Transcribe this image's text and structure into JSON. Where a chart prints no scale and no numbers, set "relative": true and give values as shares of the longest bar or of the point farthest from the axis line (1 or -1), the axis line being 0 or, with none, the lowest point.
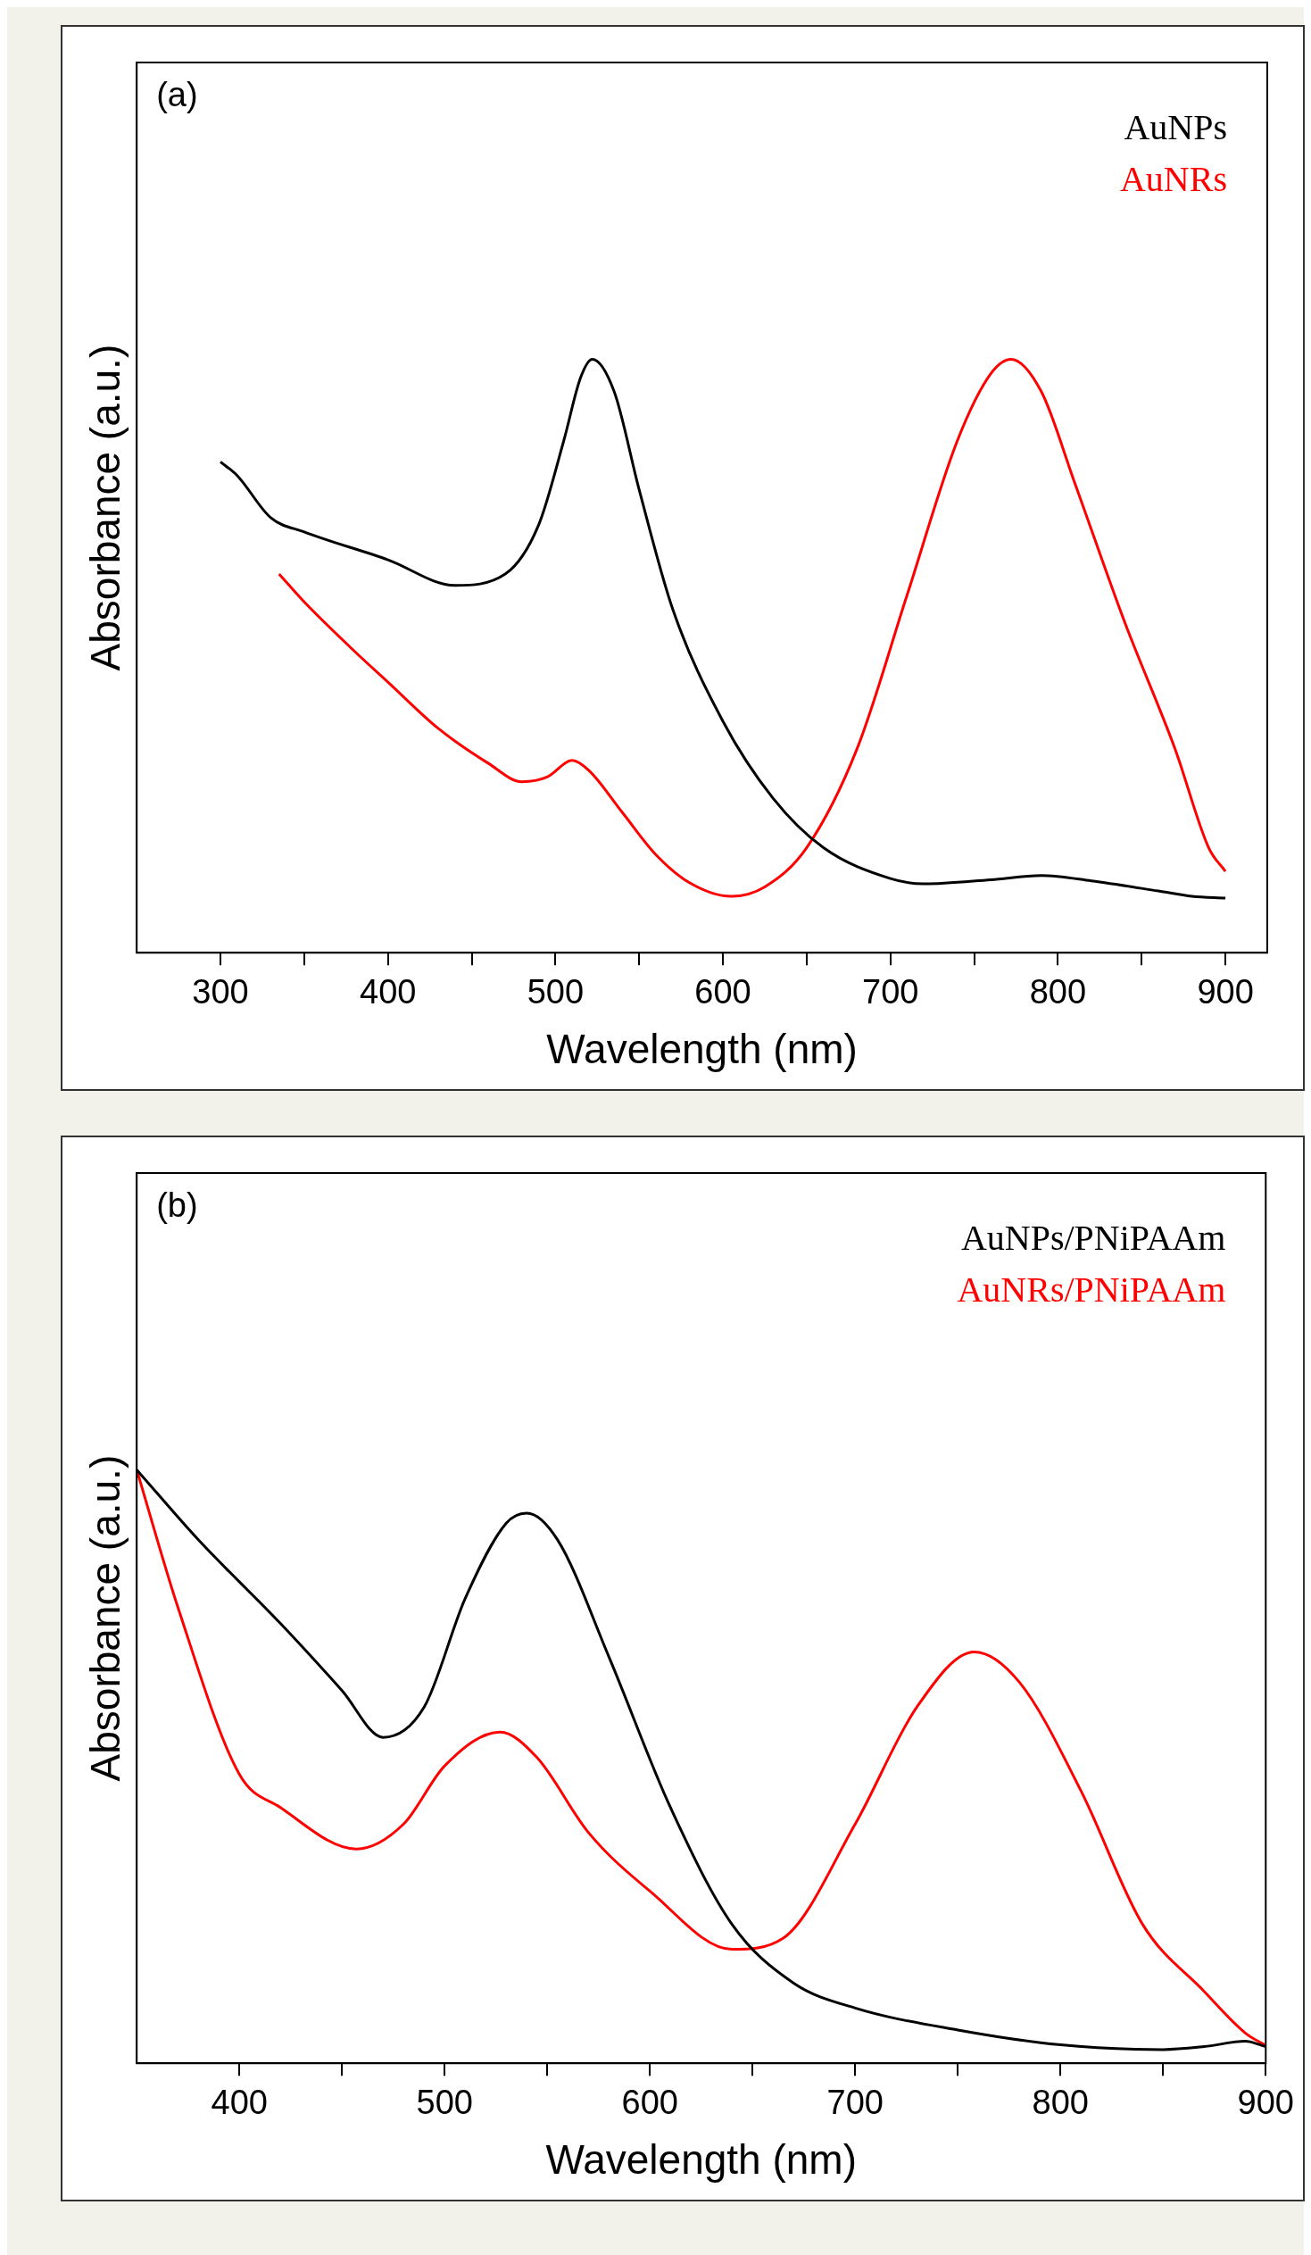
{
  "chart_data": [
    {
      "type": "line",
      "title": "(a)",
      "xlabel": "Wavelength (nm)",
      "ylabel": "Absorbance (a.u.)",
      "relative": true,
      "xlim": [
        250,
        925
      ],
      "xticks": [
        300,
        {
          "value": 350,
          "label": null
        },
        400,
        {
          "value": 450,
          "label": null
        },
        500,
        {
          "value": 550,
          "label": null
        },
        600,
        {
          "value": 650,
          "label": null
        },
        700,
        {
          "value": 750,
          "label": null
        },
        800,
        {
          "value": 850,
          "label": null
        },
        900
      ],
      "legend": "top right",
      "grid": false,
      "marker": "none",
      "line_style": "solid",
      "series": [
        {
          "name": "AuNPs",
          "color": "#000000",
          "x": [
            300,
            310,
            330,
            350,
            400,
            440,
            470,
            490,
            505,
            515,
            522,
            535,
            550,
            570,
            600,
            630,
            660,
            700,
            720,
            760,
            790,
            820,
            860,
            880,
            900
          ],
          "values": [
            0.827,
            0.804,
            0.733,
            0.709,
            0.662,
            0.619,
            0.638,
            0.721,
            0.863,
            0.969,
            1.0,
            0.946,
            0.78,
            0.579,
            0.39,
            0.26,
            0.177,
            0.125,
            0.116,
            0.123,
            0.13,
            0.121,
            0.104,
            0.095,
            0.092
          ]
        },
        {
          "name": "AuNRs",
          "color": "#ff0000",
          "x": [
            335,
            350,
            380,
            400,
            430,
            460,
            480,
            495,
            510,
            520,
            540,
            560,
            580,
            605,
            625,
            650,
            680,
            710,
            740,
            760,
            772,
            790,
            810,
            840,
            870,
            890,
            900
          ],
          "values": [
            0.638,
            0.591,
            0.508,
            0.456,
            0.378,
            0.319,
            0.288,
            0.296,
            0.324,
            0.307,
            0.236,
            0.165,
            0.118,
            0.095,
            0.111,
            0.177,
            0.343,
            0.603,
            0.863,
            0.976,
            1.0,
            0.946,
            0.792,
            0.556,
            0.343,
            0.177,
            0.137
          ]
        }
      ]
    },
    {
      "type": "line",
      "title": "(b)",
      "xlabel": "Wavelength (nm)",
      "ylabel": "Absorbance (a.u.)",
      "relative": true,
      "xlim": [
        350,
        900
      ],
      "xticks": [
        400,
        {
          "value": 450,
          "label": null
        },
        500,
        {
          "value": 550,
          "label": null
        },
        600,
        {
          "value": 650,
          "label": null
        },
        700,
        {
          "value": 750,
          "label": null
        },
        800,
        {
          "value": 850,
          "label": null
        },
        900
      ],
      "legend": "top right",
      "grid": false,
      "marker": "none",
      "line_style": "solid",
      "series": [
        {
          "name": "AuNPs/PNiPAAm",
          "color": "#000000",
          "x": [
            350,
            380,
            420,
            450,
            470,
            490,
            510,
            530,
            540,
            555,
            580,
            610,
            640,
            670,
            700,
            750,
            800,
            850,
            870,
            890,
            900
          ],
          "values": [
            1.0,
            0.882,
            0.741,
            0.628,
            0.549,
            0.6,
            0.783,
            0.91,
            0.927,
            0.882,
            0.685,
            0.431,
            0.234,
            0.135,
            0.093,
            0.056,
            0.031,
            0.023,
            0.028,
            0.037,
            0.028
          ]
        },
        {
          "name": "AuNRs/PNiPAAm",
          "color": "#ff0000",
          "x": [
            350,
            370,
            400,
            420,
            457,
            480,
            500,
            527,
            545,
            570,
            600,
            640,
            665,
            700,
            730,
            758,
            780,
            810,
            840,
            870,
            890,
            900
          ],
          "values": [
            1.0,
            0.769,
            0.487,
            0.431,
            0.361,
            0.403,
            0.501,
            0.558,
            0.515,
            0.389,
            0.29,
            0.192,
            0.211,
            0.403,
            0.6,
            0.693,
            0.642,
            0.459,
            0.234,
            0.121,
            0.051,
            0.03
          ]
        }
      ]
    }
  ]
}
